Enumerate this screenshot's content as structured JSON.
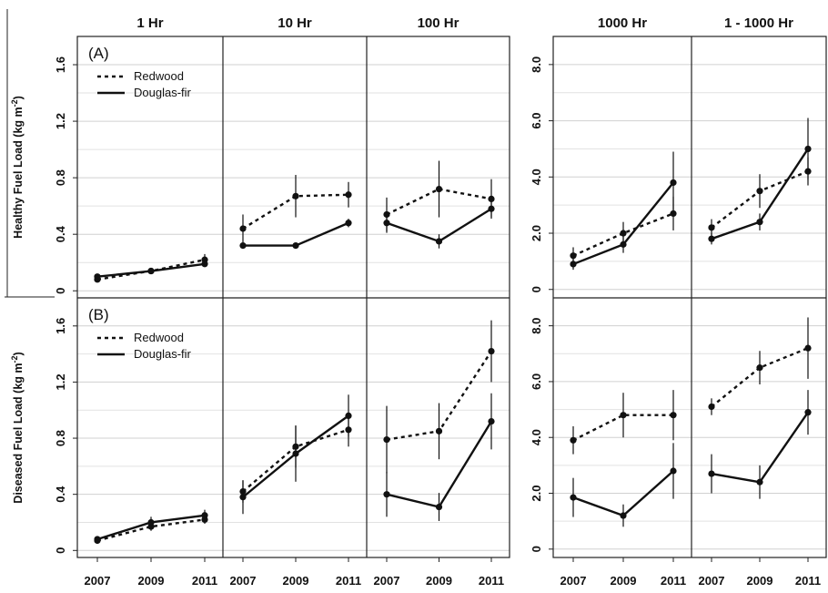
{
  "figure": {
    "column_titles": [
      "1 Hr",
      "10 Hr",
      "100 Hr",
      "1000 Hr",
      "1 - 1000 Hr"
    ],
    "row_labels": [
      "(A)",
      "(B)"
    ],
    "ylabels": [
      "Healthy Fuel Load (kg m-2)",
      "Diseased Fuel Load (kg m-2)"
    ],
    "legend": [
      "Redwood",
      "Douglas-fir"
    ],
    "x_tick_labels": [
      "2007",
      "2009",
      "2011"
    ],
    "left_y_ticks": [
      "0",
      "0.4",
      "0.8",
      "1.2",
      "1.6"
    ],
    "right_y_ticks": [
      "0",
      "2.0",
      "4.0",
      "6.0",
      "8.0"
    ]
  },
  "chart_data": [
    {
      "type": "line",
      "panel": "A",
      "column": "1 Hr",
      "x": [
        2007,
        2009,
        2011
      ],
      "ylabel": "Healthy Fuel Load (kg m-2)",
      "ylim": [
        -0.05,
        1.8
      ],
      "legend": "top-left",
      "series": [
        {
          "name": "Redwood",
          "style": "dashed",
          "values": [
            0.08,
            0.14,
            0.22
          ],
          "errors": [
            0.02,
            0.02,
            0.04
          ]
        },
        {
          "name": "Douglas-fir",
          "style": "solid",
          "values": [
            0.1,
            0.14,
            0.19
          ],
          "errors": [
            0.02,
            0.02,
            0.02
          ]
        }
      ]
    },
    {
      "type": "line",
      "panel": "A",
      "column": "10 Hr",
      "x": [
        2007,
        2009,
        2011
      ],
      "ylim": [
        -0.05,
        1.8
      ],
      "series": [
        {
          "name": "Redwood",
          "style": "dashed",
          "values": [
            0.44,
            0.67,
            0.68
          ],
          "errors": [
            0.1,
            0.15,
            0.09
          ]
        },
        {
          "name": "Douglas-fir",
          "style": "solid",
          "values": [
            0.32,
            0.32,
            0.48
          ],
          "errors": [
            0.02,
            0.02,
            0.03
          ]
        }
      ]
    },
    {
      "type": "line",
      "panel": "A",
      "column": "100 Hr",
      "x": [
        2007,
        2009,
        2011
      ],
      "ylim": [
        -0.05,
        1.8
      ],
      "series": [
        {
          "name": "Redwood",
          "style": "dashed",
          "values": [
            0.54,
            0.72,
            0.65
          ],
          "errors": [
            0.12,
            0.2,
            0.14
          ]
        },
        {
          "name": "Douglas-fir",
          "style": "solid",
          "values": [
            0.48,
            0.35,
            0.58
          ],
          "errors": [
            0.07,
            0.05,
            0.06
          ]
        }
      ]
    },
    {
      "type": "line",
      "panel": "A",
      "column": "1000 Hr",
      "x": [
        2007,
        2009,
        2011
      ],
      "ylim": [
        -0.3,
        9.0
      ],
      "series": [
        {
          "name": "Redwood",
          "style": "dashed",
          "values": [
            1.2,
            2.0,
            2.7
          ],
          "errors": [
            0.3,
            0.4,
            0.6
          ]
        },
        {
          "name": "Douglas-fir",
          "style": "solid",
          "values": [
            0.9,
            1.6,
            3.8
          ],
          "errors": [
            0.2,
            0.3,
            1.1
          ]
        }
      ]
    },
    {
      "type": "line",
      "panel": "A",
      "column": "1 - 1000 Hr",
      "x": [
        2007,
        2009,
        2011
      ],
      "ylim": [
        -0.3,
        9.0
      ],
      "series": [
        {
          "name": "Redwood",
          "style": "dashed",
          "values": [
            2.2,
            3.5,
            4.2
          ],
          "errors": [
            0.3,
            0.6,
            0.5
          ]
        },
        {
          "name": "Douglas-fir",
          "style": "solid",
          "values": [
            1.8,
            2.4,
            5.0
          ],
          "errors": [
            0.2,
            0.3,
            1.1
          ]
        }
      ]
    },
    {
      "type": "line",
      "panel": "B",
      "column": "1 Hr",
      "x": [
        2007,
        2009,
        2011
      ],
      "ylabel": "Diseased Fuel Load (kg m-2)",
      "ylim": [
        -0.05,
        1.8
      ],
      "legend": "top-left",
      "series": [
        {
          "name": "Redwood",
          "style": "dashed",
          "values": [
            0.07,
            0.17,
            0.22
          ],
          "errors": [
            0.02,
            0.03,
            0.03
          ]
        },
        {
          "name": "Douglas-fir",
          "style": "solid",
          "values": [
            0.08,
            0.2,
            0.25
          ],
          "errors": [
            0.02,
            0.04,
            0.04
          ]
        }
      ]
    },
    {
      "type": "line",
      "panel": "B",
      "column": "10 Hr",
      "x": [
        2007,
        2009,
        2011
      ],
      "ylim": [
        -0.05,
        1.8
      ],
      "series": [
        {
          "name": "Redwood",
          "style": "dashed",
          "values": [
            0.42,
            0.74,
            0.86
          ],
          "errors": [
            0.08,
            0.15,
            0.12
          ]
        },
        {
          "name": "Douglas-fir",
          "style": "solid",
          "values": [
            0.38,
            0.69,
            0.96
          ],
          "errors": [
            0.12,
            0.2,
            0.15
          ]
        }
      ]
    },
    {
      "type": "line",
      "panel": "B",
      "column": "100 Hr",
      "x": [
        2007,
        2009,
        2011
      ],
      "ylim": [
        -0.05,
        1.8
      ],
      "series": [
        {
          "name": "Redwood",
          "style": "dashed",
          "values": [
            0.79,
            0.85,
            1.42
          ],
          "errors": [
            0.24,
            0.2,
            0.22
          ]
        },
        {
          "name": "Douglas-fir",
          "style": "solid",
          "values": [
            0.4,
            0.31,
            0.92
          ],
          "errors": [
            0.16,
            0.1,
            0.2
          ]
        }
      ]
    },
    {
      "type": "line",
      "panel": "B",
      "column": "1000 Hr",
      "x": [
        2007,
        2009,
        2011
      ],
      "ylim": [
        -0.3,
        9.0
      ],
      "series": [
        {
          "name": "Redwood",
          "style": "dashed",
          "values": [
            3.9,
            4.8,
            4.8
          ],
          "errors": [
            0.5,
            0.8,
            0.9
          ]
        },
        {
          "name": "Douglas-fir",
          "style": "solid",
          "values": [
            1.85,
            1.2,
            2.8
          ],
          "errors": [
            0.7,
            0.4,
            1.0
          ]
        }
      ]
    },
    {
      "type": "line",
      "panel": "B",
      "column": "1 - 1000 Hr",
      "x": [
        2007,
        2009,
        2011
      ],
      "ylim": [
        -0.3,
        9.0
      ],
      "series": [
        {
          "name": "Redwood",
          "style": "dashed",
          "values": [
            5.1,
            6.5,
            7.2
          ],
          "errors": [
            0.3,
            0.6,
            1.1
          ]
        },
        {
          "name": "Douglas-fir",
          "style": "solid",
          "values": [
            2.7,
            2.4,
            4.9
          ],
          "errors": [
            0.7,
            0.6,
            0.8
          ]
        }
      ]
    }
  ]
}
